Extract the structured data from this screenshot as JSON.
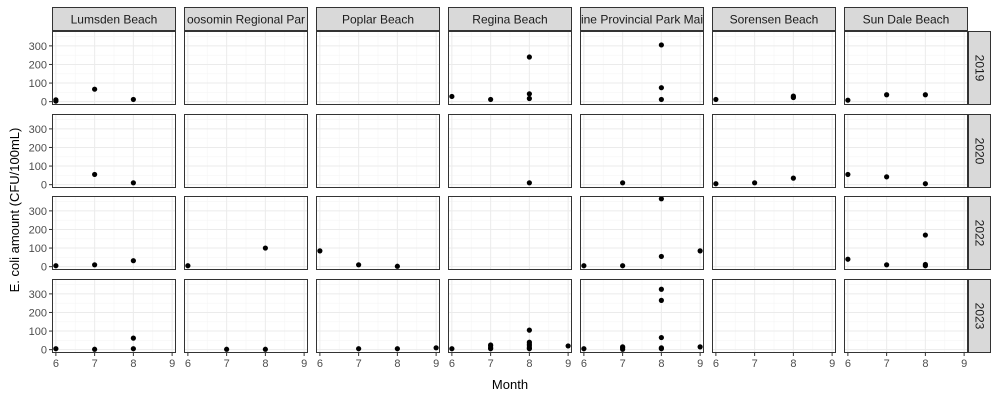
{
  "chart_data": {
    "type": "scatter",
    "xlabel": "Month",
    "ylabel": "E. coli amount (CFU/100mL)",
    "x_ticks": [
      6,
      7,
      8,
      9
    ],
    "y_ticks": [
      0,
      100,
      200,
      300
    ],
    "xlim": [
      5.9,
      9.1
    ],
    "ylim": [
      -18,
      380
    ],
    "grid": true,
    "facet_columns": [
      "Lumsden Beach",
      "Moosomin Regional Park",
      "Poplar Beach",
      "Regina Beach",
      "Pine Provincial Park Main",
      "Sorensen Beach",
      "Sun Dale Beach"
    ],
    "facet_column_labels": [
      "Lumsden Beach",
      "oosomin Regional Par",
      "Poplar Beach",
      "Regina Beach",
      "ine Provincial Park Mai",
      "Sorensen Beach",
      "Sun Dale Beach"
    ],
    "facet_rows": [
      "2019",
      "2020",
      "2022",
      "2023"
    ],
    "colors": {
      "point": "#000000",
      "strip_fill": "#d9d9d9",
      "panel_border": "#333333",
      "grid_major": "#ebebeb",
      "grid_minor": "#f5f5f5"
    },
    "panels": [
      {
        "year": "2019",
        "beach": "Lumsden Beach",
        "points": [
          [
            6,
            3
          ],
          [
            6,
            10
          ],
          [
            7,
            67
          ],
          [
            8,
            12
          ]
        ]
      },
      {
        "year": "2019",
        "beach": "Regina Beach",
        "points": [
          [
            6,
            28
          ],
          [
            7,
            12
          ],
          [
            8,
            240
          ],
          [
            8,
            42
          ],
          [
            8,
            17
          ]
        ]
      },
      {
        "year": "2019",
        "beach": "Pine Provincial Park Main",
        "points": [
          [
            8,
            305
          ],
          [
            8,
            75
          ],
          [
            8,
            12
          ]
        ]
      },
      {
        "year": "2019",
        "beach": "Sorensen Beach",
        "points": [
          [
            6,
            12
          ],
          [
            8,
            30
          ],
          [
            8,
            22
          ]
        ]
      },
      {
        "year": "2019",
        "beach": "Sun Dale Beach",
        "points": [
          [
            6,
            8
          ],
          [
            7,
            37
          ],
          [
            8,
            37
          ]
        ]
      },
      {
        "year": "2020",
        "beach": "Lumsden Beach",
        "points": [
          [
            7,
            55
          ],
          [
            8,
            10
          ]
        ]
      },
      {
        "year": "2020",
        "beach": "Regina Beach",
        "points": [
          [
            8,
            10
          ]
        ]
      },
      {
        "year": "2020",
        "beach": "Pine Provincial Park Main",
        "points": [
          [
            7,
            10
          ]
        ]
      },
      {
        "year": "2020",
        "beach": "Sorensen Beach",
        "points": [
          [
            6,
            5
          ],
          [
            7,
            10
          ],
          [
            8,
            35
          ]
        ]
      },
      {
        "year": "2020",
        "beach": "Sun Dale Beach",
        "points": [
          [
            6,
            55
          ],
          [
            7,
            42
          ],
          [
            8,
            5
          ]
        ]
      },
      {
        "year": "2022",
        "beach": "Lumsden Beach",
        "points": [
          [
            6,
            5
          ],
          [
            7,
            10
          ],
          [
            8,
            32
          ]
        ]
      },
      {
        "year": "2022",
        "beach": "Moosomin Regional Park",
        "points": [
          [
            6,
            5
          ],
          [
            8,
            100
          ]
        ]
      },
      {
        "year": "2022",
        "beach": "Poplar Beach",
        "points": [
          [
            6,
            85
          ],
          [
            7,
            10
          ],
          [
            8,
            2
          ]
        ]
      },
      {
        "year": "2022",
        "beach": "Pine Provincial Park Main",
        "points": [
          [
            6,
            5
          ],
          [
            7,
            5
          ],
          [
            8,
            365
          ],
          [
            8,
            55
          ],
          [
            9,
            85
          ]
        ]
      },
      {
        "year": "2022",
        "beach": "Sun Dale Beach",
        "points": [
          [
            6,
            40
          ],
          [
            7,
            10
          ],
          [
            8,
            170
          ],
          [
            8,
            12
          ],
          [
            8,
            5
          ]
        ]
      },
      {
        "year": "2023",
        "beach": "Lumsden Beach",
        "points": [
          [
            6,
            5
          ],
          [
            7,
            2
          ],
          [
            8,
            62
          ],
          [
            8,
            5
          ]
        ]
      },
      {
        "year": "2023",
        "beach": "Moosomin Regional Park",
        "points": [
          [
            7,
            2
          ],
          [
            8,
            2
          ]
        ]
      },
      {
        "year": "2023",
        "beach": "Poplar Beach",
        "points": [
          [
            7,
            5
          ],
          [
            8,
            5
          ],
          [
            9,
            10
          ]
        ]
      },
      {
        "year": "2023",
        "beach": "Regina Beach",
        "points": [
          [
            6,
            5
          ],
          [
            7,
            5
          ],
          [
            7,
            10
          ],
          [
            7,
            20
          ],
          [
            7,
            25
          ],
          [
            8,
            105
          ],
          [
            8,
            40
          ],
          [
            8,
            30
          ],
          [
            8,
            20
          ],
          [
            8,
            10
          ],
          [
            8,
            5
          ],
          [
            9,
            20
          ]
        ]
      },
      {
        "year": "2023",
        "beach": "Pine Provincial Park Main",
        "points": [
          [
            6,
            5
          ],
          [
            7,
            2
          ],
          [
            7,
            10
          ],
          [
            7,
            15
          ],
          [
            8,
            325
          ],
          [
            8,
            265
          ],
          [
            8,
            65
          ],
          [
            8,
            10
          ],
          [
            8,
            5
          ],
          [
            9,
            15
          ]
        ]
      }
    ]
  }
}
